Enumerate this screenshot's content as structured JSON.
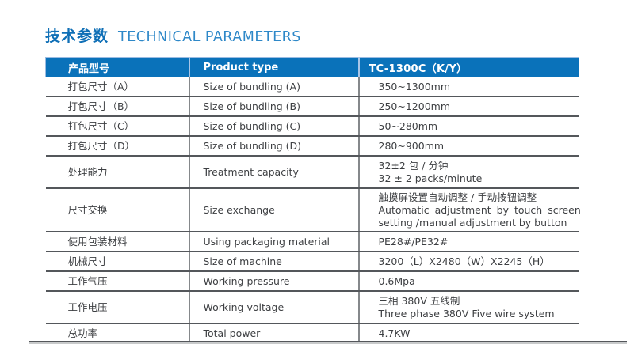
{
  "title": {
    "zh": "技术参数",
    "en": "TECHNICAL PARAMETERS"
  },
  "colors": {
    "header_bg": "#0a72ba",
    "header_border": "#9bbce2",
    "title_zh": "#0f6fb6",
    "title_en": "#2e88c8",
    "grid_horizontal": "#54575b",
    "grid_vertical": "#85888b",
    "body_text": "#3d3f42"
  },
  "table": {
    "header": [
      "产品型号",
      "Product type",
      "TC-1300C（K/Y）"
    ],
    "rows": [
      {
        "label_zh": "打包尺寸（A）",
        "label_en": "Size of bundling (A)",
        "value_lines": [
          "350~1300mm"
        ]
      },
      {
        "label_zh": "打包尺寸（B）",
        "label_en": "Size of bundling (B)",
        "value_lines": [
          "250~1200mm"
        ]
      },
      {
        "label_zh": "打包尺寸（C）",
        "label_en": "Size of bundling (C)",
        "value_lines": [
          "50~280mm"
        ]
      },
      {
        "label_zh": "打包尺寸（D）",
        "label_en": "Size of bundling (D)",
        "value_lines": [
          "280~900mm"
        ]
      },
      {
        "label_zh": "处理能力",
        "label_en": "Treatment capacity",
        "value_lines": [
          "32±2 包 / 分钟",
          "32 ± 2 packs/minute"
        ]
      },
      {
        "label_zh": "尺寸交换",
        "label_en": "Size exchange",
        "value_lines": [
          "触摸屏设置自动调整 / 手动按钮调整",
          "Automatic adjustment by touch screen",
          "setting /manual adjustment by button"
        ]
      },
      {
        "label_zh": "使用包装材料",
        "label_en": "Using packaging material",
        "value_lines": [
          "PE28#/PE32#"
        ]
      },
      {
        "label_zh": "机械尺寸",
        "label_en": "Size of machine",
        "value_lines": [
          "3200（L）X2480（W）X2245（H）"
        ]
      },
      {
        "label_zh": "工作气压",
        "label_en": "Working pressure",
        "value_lines": [
          "0.6Mpa"
        ]
      },
      {
        "label_zh": "工作电压",
        "label_en": "Working voltage",
        "value_lines": [
          "三相 380V 五线制",
          "Three phase 380V Five wire system"
        ]
      },
      {
        "label_zh": "总功率",
        "label_en": "Total power",
        "value_lines": [
          "4.7KW"
        ]
      }
    ]
  }
}
